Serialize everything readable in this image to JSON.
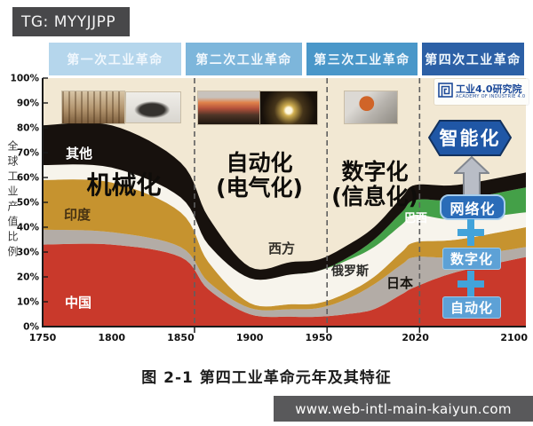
{
  "badge": {
    "text": "TG: MYYJJPP"
  },
  "headers": [
    {
      "label": "第一次工业革命",
      "color": "#b5d6ec"
    },
    {
      "label": "第二次工业革命",
      "color": "#7db6db"
    },
    {
      "label": "第三次工业革命",
      "color": "#4a97c9"
    },
    {
      "label": "第四次工业革命",
      "color": "#2c60a6"
    }
  ],
  "y_axis": {
    "title": "全球工业产值比例",
    "ticks": [
      "0%",
      "10%",
      "20%",
      "30%",
      "40%",
      "50%",
      "60%",
      "70%",
      "80%",
      "90%",
      "100%"
    ]
  },
  "x_axis": {
    "ticks": [
      {
        "label": "1750",
        "year": 1750
      },
      {
        "label": "1800",
        "year": 1800
      },
      {
        "label": "1850",
        "year": 1850
      },
      {
        "label": "1900",
        "year": 1900
      },
      {
        "label": "1950",
        "year": 1950
      },
      {
        "label": "2020",
        "year": 2020
      },
      {
        "label": "2100",
        "year": 2100
      }
    ]
  },
  "eras": [
    {
      "main": "机械化",
      "sub": ""
    },
    {
      "main": "自动化",
      "sub": "(电气化)"
    },
    {
      "main": "数字化",
      "sub": "(信息化)"
    }
  ],
  "flow": {
    "goal": "智能化",
    "steps": [
      "网络化",
      "数字化",
      "自动化"
    ],
    "plus": "+"
  },
  "logo": {
    "title": "工业4.0研究院",
    "subtitle": "ACADEMY OF INDUSTRIE 4.0"
  },
  "caption": "图 2-1 第四工业革命元年及其特征",
  "footer": {
    "url": "www.web-intl-main-kaiyun.com"
  },
  "photos": [
    {
      "icon": "textile-machine-photo"
    },
    {
      "icon": "steam-locomotive-photo"
    },
    {
      "icon": "electrified-factory-photo"
    },
    {
      "icon": "light-bulbs-photo"
    },
    {
      "icon": "robot-arm-photo"
    }
  ],
  "colors": {
    "plot_background": "#f2e8d3",
    "axis": "#1a1a1a",
    "dashed_line": "#5f5f5f",
    "accent_blue": "#42a3da"
  },
  "chart_data": {
    "type": "area",
    "stacked": true,
    "title": "图 2-1 第四工业革命元年及其特征",
    "xlabel": "",
    "ylabel": "全球工业产值比例",
    "xlim": [
      1750,
      2100
    ],
    "ylim": [
      0,
      100
    ],
    "x": [
      1750,
      1800,
      1850,
      1870,
      1900,
      1930,
      1950,
      1970,
      1990,
      2010,
      2020,
      2050,
      2100
    ],
    "series": [
      {
        "key": "china",
        "name": "中国",
        "color": "#c9392b",
        "values": [
          33,
          33,
          28,
          15,
          5,
          4,
          4,
          5,
          7,
          13,
          16,
          22,
          28
        ]
      },
      {
        "key": "japan",
        "name": "日本",
        "color": "#b3aca6",
        "values": [
          6,
          5,
          4,
          3,
          2.5,
          3,
          3.5,
          6,
          10,
          12,
          12,
          6,
          4
        ]
      },
      {
        "key": "india",
        "name": "印度",
        "color": "#c6932f",
        "values": [
          20,
          20,
          14,
          8,
          2,
          2,
          2,
          2.5,
          3,
          5,
          6,
          7,
          8
        ]
      },
      {
        "key": "russia",
        "name": "俄罗斯",
        "color": "#f7f4ec",
        "values": [
          6,
          6,
          6,
          7,
          10,
          12,
          13,
          13,
          12,
          11,
          11,
          8,
          6
        ]
      },
      {
        "key": "brazil",
        "name": "巴西",
        "color": "#44a048",
        "values": [
          0,
          0,
          0,
          0,
          0,
          0,
          0,
          1,
          3,
          5,
          6,
          8,
          10
        ]
      },
      {
        "key": "other",
        "name": "其他",
        "color": "#17110d",
        "values": [
          16,
          17,
          14,
          11,
          4.5,
          5,
          4.5,
          5,
          5,
          6,
          6,
          6,
          6
        ]
      }
    ],
    "background_region": "西方",
    "boundaries_years": [
      1860,
      1956,
      2023
    ],
    "legend_position": "none",
    "grid": false
  }
}
